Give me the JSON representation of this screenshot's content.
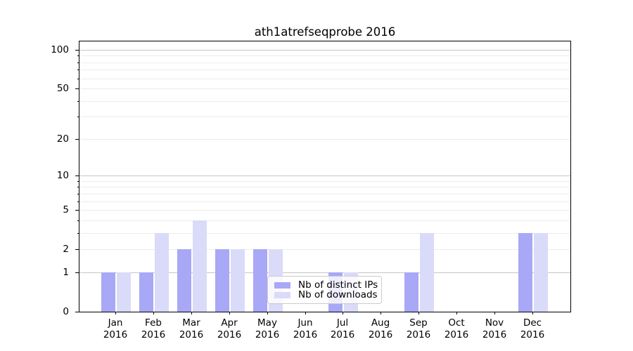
{
  "chart_data": {
    "type": "bar",
    "title": "ath1atrefseqprobe 2016",
    "categories": [
      "Jan 2016",
      "Feb 2016",
      "Mar 2016",
      "Apr 2016",
      "May 2016",
      "Jun 2016",
      "Jul 2016",
      "Aug 2016",
      "Sep 2016",
      "Oct 2016",
      "Nov 2016",
      "Dec 2016"
    ],
    "series": [
      {
        "name": "Nb of distinct IPs",
        "color": "#a8a8f6",
        "values": [
          1,
          1,
          2,
          2,
          2,
          0,
          1,
          0,
          1,
          0,
          0,
          3
        ]
      },
      {
        "name": "Nb of downloads",
        "color": "#dadaf9",
        "values": [
          1,
          3,
          4,
          2,
          2,
          0,
          1,
          0,
          3,
          0,
          0,
          3
        ]
      }
    ],
    "y_axis": {
      "scale": "log10(1+x)",
      "ticks": [
        {
          "label": "100",
          "value": 100,
          "major": true
        },
        {
          "label": "50",
          "value": 50,
          "major": false
        },
        {
          "label": "20",
          "value": 20,
          "major": false
        },
        {
          "label": "10",
          "value": 10,
          "major": true
        },
        {
          "label": "5",
          "value": 5,
          "major": false
        },
        {
          "label": "2",
          "value": 2,
          "major": false
        },
        {
          "label": "1",
          "value": 1,
          "major": true
        },
        {
          "label": "0",
          "value": 0,
          "major": true
        }
      ],
      "minor_gridline_values": [
        3,
        4,
        6,
        7,
        8,
        9,
        30,
        40,
        60,
        70,
        80,
        90
      ],
      "ylim": [
        0,
        116
      ]
    },
    "legend": {
      "position": "inside-bottom-center",
      "entries": [
        "Nb of distinct IPs",
        "Nb of downloads"
      ]
    },
    "grid": true,
    "colors": {
      "major_grid": "#c6c6c6",
      "minor_grid": "#ececec",
      "spine": "#000000",
      "background": "#ffffff"
    }
  }
}
